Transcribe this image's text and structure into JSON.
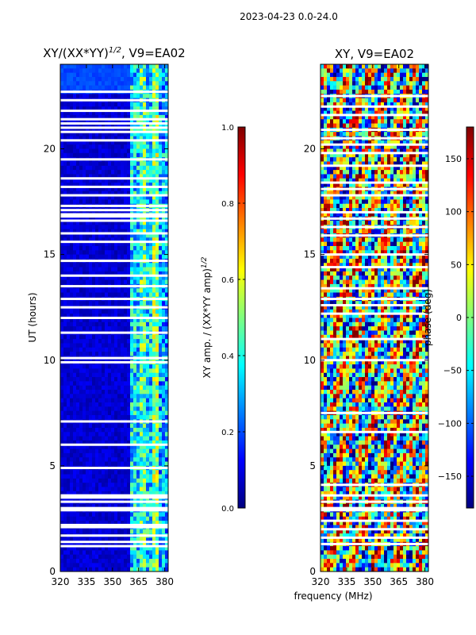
{
  "suptitle": "2023-04-23 0.0-24.0",
  "shared_xlabel": "frequency (MHz)",
  "colors": {
    "jet": [
      "#00007f",
      "#0000ff",
      "#007fff",
      "#00ffff",
      "#7fff7f",
      "#ffff00",
      "#ff7f00",
      "#ff0000",
      "#7f0000"
    ],
    "frame": "#000000",
    "background": "#ffffff"
  },
  "chart_data": [
    {
      "type": "heatmap",
      "title_main": "XY/(XX*YY)",
      "title_sup": "1/2",
      "title_tail": ", V9=EA02",
      "xlabel": "",
      "ylabel": "UT (hours)",
      "xlim": [
        320,
        382
      ],
      "ylim": [
        0,
        24
      ],
      "xticks": [
        320,
        335,
        350,
        365,
        380
      ],
      "yticks": [
        0,
        5,
        10,
        15,
        20
      ],
      "band_edges_mhz": [
        320,
        360,
        365,
        369,
        373,
        377,
        382
      ],
      "band_mean_values": [
        0.08,
        0.35,
        0.45,
        0.35,
        0.5,
        0.3
      ],
      "gap_hours": [
        1.2,
        1.4,
        1.7,
        2.1,
        2.2,
        2.9,
        3.0,
        3.3,
        3.5,
        3.6,
        4.9,
        6.0,
        7.1,
        9.9,
        10.1,
        11.3,
        12.0,
        12.5,
        12.9,
        13.5,
        14.0,
        14.7,
        15.6,
        16.0,
        16.6,
        16.8,
        16.9,
        17.1,
        17.3,
        17.8,
        18.2,
        18.6,
        19.5,
        20.4,
        20.8,
        21.0,
        21.2,
        21.4,
        21.8,
        22.3,
        22.7
      ],
      "colorbar": {
        "min": 0.0,
        "max": 1.0,
        "ticks": [
          0.0,
          0.2,
          0.4,
          0.6,
          0.8,
          1.0
        ],
        "tick_labels": [
          "0.0",
          "0.2",
          "0.4",
          "0.6",
          "0.8",
          "1.0"
        ],
        "label_main": "XY amp. / (XX*YY amp)",
        "label_sup": "1/2"
      }
    },
    {
      "type": "heatmap",
      "title": "XY, V9=EA02",
      "xlabel": "frequency (MHz)",
      "ylabel": "",
      "xlim": [
        320,
        382
      ],
      "ylim": [
        0,
        24
      ],
      "xticks": [
        320,
        335,
        350,
        365,
        380
      ],
      "yticks": [
        0,
        5,
        10,
        15,
        20
      ],
      "value_range_deg": [
        -180,
        180
      ],
      "gap_hours": [
        1.3,
        1.6,
        2.0,
        2.4,
        2.9,
        3.0,
        3.3,
        3.6,
        4.1,
        6.6,
        7.5,
        10.0,
        11.0,
        12.2,
        12.6,
        12.9,
        13.4,
        14.4,
        15.0,
        15.9,
        16.3,
        16.7,
        17.0,
        17.8,
        18.1,
        18.4,
        19.2,
        19.8,
        20.2,
        20.5,
        20.9,
        21.6,
        22.0,
        22.5
      ],
      "colorbar": {
        "min": -180,
        "max": 180,
        "ticks": [
          -150,
          -100,
          -50,
          0,
          50,
          100,
          150
        ],
        "tick_labels": [
          "−150",
          "−100",
          "−50",
          "0",
          "50",
          "100",
          "150"
        ],
        "label": "phase (deg)"
      }
    }
  ]
}
